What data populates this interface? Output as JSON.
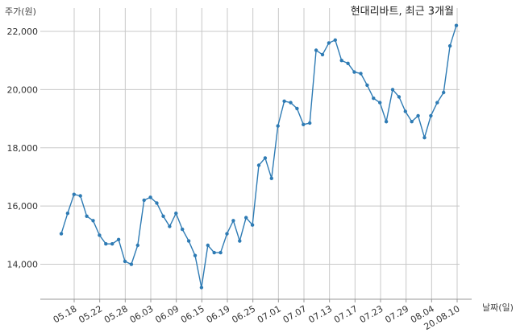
{
  "chart_data": {
    "type": "line",
    "title": "현대리바트, 최근 3개월",
    "xlabel": "날짜(일)",
    "ylabel": "주가(원)",
    "ylim": [
      12800,
      22800
    ],
    "yticks": [
      14000,
      16000,
      18000,
      20000,
      22000
    ],
    "ytick_labels": [
      "14,000",
      "16,000",
      "18,000",
      "20,000",
      "22,000"
    ],
    "xtick_labels": [
      "05.18",
      "05.22",
      "05.28",
      "06.03",
      "06.09",
      "06.15",
      "06.19",
      "06.25",
      "07.01",
      "07.07",
      "07.13",
      "07.17",
      "07.23",
      "07.29",
      "08.04",
      "20.08.10"
    ],
    "grid": true,
    "legend": "none",
    "colors": {
      "line": "#2e7bb4",
      "grid": "#c8c8c8",
      "axis": "#999999"
    },
    "series": [
      {
        "values": [
          15050,
          15750,
          16400,
          16350,
          15650,
          15500,
          15000,
          14700,
          14700,
          14850,
          14100,
          14000,
          14650,
          16200,
          16300,
          16100,
          15650,
          15300,
          15750,
          15200,
          14800,
          14300,
          13200,
          14650,
          14400,
          14400,
          15050,
          15500,
          14800,
          15600,
          15350,
          17400,
          17650,
          16950,
          18750,
          19600,
          19550,
          19350,
          18800,
          18850,
          21350,
          21200,
          21600,
          21700,
          21000,
          20900,
          20600,
          20550,
          20150,
          19700,
          19550,
          18900,
          20000,
          19750,
          19250,
          18900,
          19100,
          18350,
          19100,
          19550,
          19900,
          21500,
          22200
        ]
      }
    ]
  }
}
